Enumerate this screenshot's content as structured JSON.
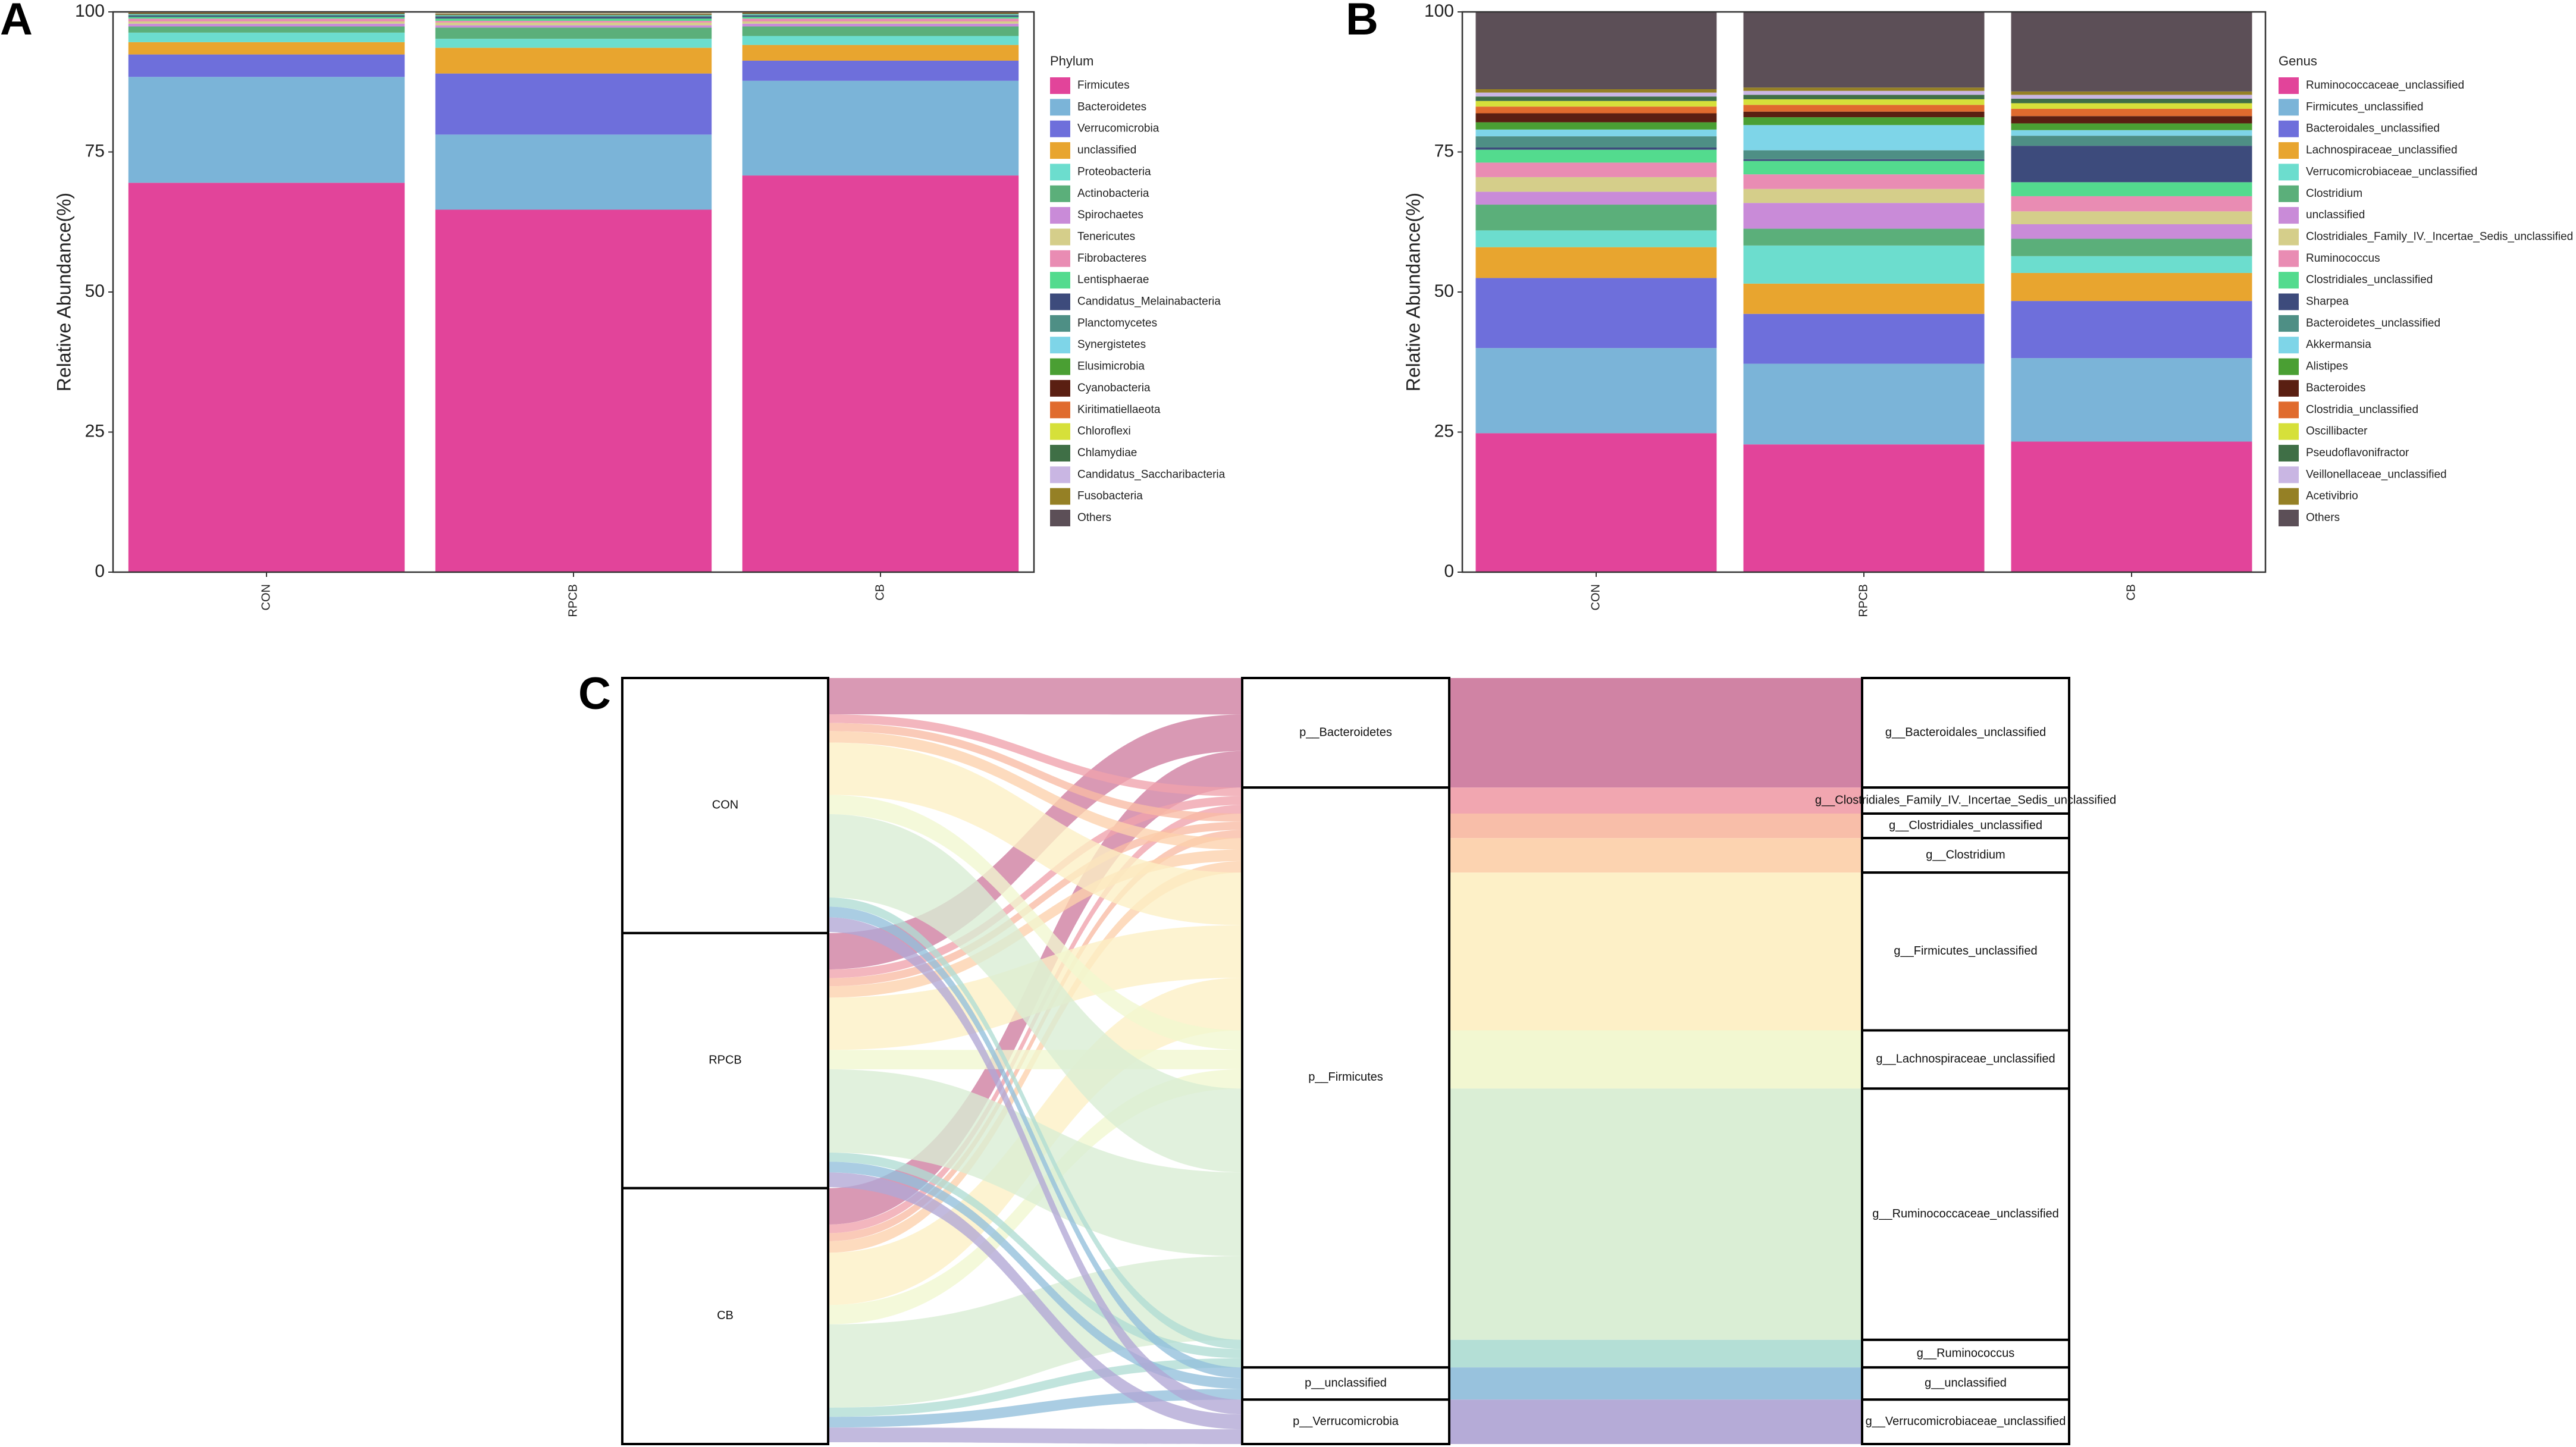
{
  "panel_labels": {
    "a": "A",
    "b": "B",
    "c": "C"
  },
  "chart_data": [
    {
      "id": "A",
      "type": "bar",
      "stacked": true,
      "title": "",
      "xlabel": "",
      "ylabel": "Relative Abundance(%)",
      "ylim": [
        0,
        100
      ],
      "yticks": [
        "0",
        "25",
        "50",
        "75",
        "100"
      ],
      "categories": [
        "CON",
        "RPCB",
        "CB"
      ],
      "legend_title": "Phylum",
      "legend_position": "right",
      "series": [
        {
          "name": "Firmicutes",
          "color": "#E2449A",
          "values": [
            69.5,
            64.7,
            70.8
          ]
        },
        {
          "name": "Bacteroidetes",
          "color": "#7BB4D8",
          "values": [
            18.9,
            13.4,
            16.9
          ]
        },
        {
          "name": "Verrucomicrobia",
          "color": "#6E6FDB",
          "values": [
            4.0,
            10.9,
            3.6
          ]
        },
        {
          "name": "unclassified",
          "color": "#E8A52F",
          "values": [
            2.2,
            4.6,
            2.8
          ]
        },
        {
          "name": "Proteobacteria",
          "color": "#6CDDCE",
          "values": [
            1.7,
            1.6,
            1.6
          ]
        },
        {
          "name": "Actinobacteria",
          "color": "#5BAF7A",
          "values": [
            1.1,
            2.0,
            1.7
          ]
        },
        {
          "name": "Spirochaetes",
          "color": "#C98BD8",
          "values": [
            0.5,
            0.4,
            0.5
          ]
        },
        {
          "name": "Tenericutes",
          "color": "#D5CE8A",
          "values": [
            0.4,
            0.5,
            0.4
          ]
        },
        {
          "name": "Fibrobacteres",
          "color": "#E98CB3",
          "values": [
            0.5,
            0.3,
            0.5
          ]
        },
        {
          "name": "Lentisphaerae",
          "color": "#53DB8E",
          "values": [
            0.3,
            0.4,
            0.3
          ]
        },
        {
          "name": "Candidatus_Melainabacteria",
          "color": "#3D4B7C",
          "values": [
            0.2,
            0.3,
            0.2
          ]
        },
        {
          "name": "Planctomycetes",
          "color": "#4E8F85",
          "values": [
            0.2,
            0.2,
            0.2
          ]
        },
        {
          "name": "Synergistetes",
          "color": "#7ED5E8",
          "values": [
            0.1,
            0.1,
            0.1
          ]
        },
        {
          "name": "Elusimicrobia",
          "color": "#4A9F33",
          "values": [
            0.1,
            0.1,
            0.1
          ]
        },
        {
          "name": "Cyanobacteria",
          "color": "#5A1F12",
          "values": [
            0.1,
            0.1,
            0.1
          ]
        },
        {
          "name": "Kiritimatiellaeota",
          "color": "#E06B2E",
          "values": [
            0.05,
            0.05,
            0.05
          ]
        },
        {
          "name": "Chloroflexi",
          "color": "#D6E03A",
          "values": [
            0.05,
            0.05,
            0.05
          ]
        },
        {
          "name": "Chlamydiae",
          "color": "#3F6F46",
          "values": [
            0.05,
            0.05,
            0.05
          ]
        },
        {
          "name": "Candidatus_Saccharibacteria",
          "color": "#C9B6E3",
          "values": [
            0.05,
            0.05,
            0.05
          ]
        },
        {
          "name": "Fusobacteria",
          "color": "#958025",
          "values": [
            0.05,
            0.05,
            0.05
          ]
        },
        {
          "name": "Others",
          "color": "#5C4F57",
          "values": [
            0.0,
            0.0,
            0.0
          ]
        }
      ]
    },
    {
      "id": "B",
      "type": "bar",
      "stacked": true,
      "title": "",
      "xlabel": "",
      "ylabel": "Relative Abundance(%)",
      "ylim": [
        0,
        100
      ],
      "yticks": [
        "0",
        "25",
        "50",
        "75",
        "100"
      ],
      "categories": [
        "CON",
        "RPCB",
        "CB"
      ],
      "legend_title": "Genus",
      "legend_position": "right",
      "series": [
        {
          "name": "Ruminococcaceae_unclassified",
          "color": "#E2449A",
          "values": [
            24.8,
            22.8,
            23.3
          ]
        },
        {
          "name": "Firmicutes_unclassified",
          "color": "#7BB4D8",
          "values": [
            15.2,
            14.4,
            14.9
          ]
        },
        {
          "name": "Bacteroidales_unclassified",
          "color": "#6E6FDB",
          "values": [
            12.5,
            8.9,
            10.2
          ]
        },
        {
          "name": "Lachnospiraceae_unclassified",
          "color": "#E8A52F",
          "values": [
            5.5,
            5.4,
            5.0
          ]
        },
        {
          "name": "Verrucomicrobiaceae_unclassified",
          "color": "#6CDDCE",
          "values": [
            3.0,
            6.8,
            3.0
          ]
        },
        {
          "name": "Clostridium",
          "color": "#5BAF7A",
          "values": [
            4.6,
            3.0,
            3.1
          ]
        },
        {
          "name": "unclassified",
          "color": "#C98BD8",
          "values": [
            2.3,
            4.6,
            2.6
          ]
        },
        {
          "name": "Clostridiales_Family_IV._Incertae_Sedis_unclassified",
          "color": "#D5CE8A",
          "values": [
            2.6,
            2.5,
            2.3
          ]
        },
        {
          "name": "Ruminococcus",
          "color": "#E98CB3",
          "values": [
            2.6,
            2.6,
            2.7
          ]
        },
        {
          "name": "Clostridiales_unclassified",
          "color": "#53DB8E",
          "values": [
            2.3,
            2.4,
            2.5
          ]
        },
        {
          "name": "Sharpea",
          "color": "#3D4B7C",
          "values": [
            0.4,
            0.3,
            6.5
          ]
        },
        {
          "name": "Bacteroidetes_unclassified",
          "color": "#4E8F85",
          "values": [
            2.0,
            1.6,
            1.8
          ]
        },
        {
          "name": "Akkermansia",
          "color": "#7ED5E8",
          "values": [
            1.2,
            4.5,
            1.0
          ]
        },
        {
          "name": "Alistipes",
          "color": "#4A9F33",
          "values": [
            1.3,
            1.4,
            1.2
          ]
        },
        {
          "name": "Bacteroides",
          "color": "#5A1F12",
          "values": [
            1.6,
            1.0,
            1.3
          ]
        },
        {
          "name": "Clostridia_unclassified",
          "color": "#E06B2E",
          "values": [
            1.2,
            1.2,
            1.3
          ]
        },
        {
          "name": "Oscillibacter",
          "color": "#D6E03A",
          "values": [
            1.0,
            1.0,
            1.0
          ]
        },
        {
          "name": "Pseudoflavonifractor",
          "color": "#3F6F46",
          "values": [
            0.8,
            0.8,
            0.8
          ]
        },
        {
          "name": "Veillonellaceae_unclassified",
          "color": "#C9B6E3",
          "values": [
            0.7,
            0.7,
            0.7
          ]
        },
        {
          "name": "Acetivibrio",
          "color": "#958025",
          "values": [
            0.6,
            0.6,
            0.6
          ]
        },
        {
          "name": "Others",
          "color": "#5C4F57",
          "values": [
            13.8,
            13.5,
            14.2
          ]
        }
      ]
    },
    {
      "id": "C",
      "type": "sankey",
      "title": "",
      "levels": [
        {
          "nodes": [
            {
              "name": "CON",
              "value": 33.3
            },
            {
              "name": "RPCB",
              "value": 33.3
            },
            {
              "name": "CB",
              "value": 33.4
            }
          ]
        },
        {
          "nodes": [
            {
              "name": "p__Bacteroidetes",
              "value": 14.3
            },
            {
              "name": "p__Firmicutes",
              "value": 75.7
            },
            {
              "name": "p__unclassified",
              "value": 4.2
            },
            {
              "name": "p__Verrucomicrobia",
              "value": 5.8
            }
          ]
        },
        {
          "nodes": [
            {
              "name": "g__Bacteroidales_unclassified",
              "value": 14.3,
              "color": "#CE7C9F"
            },
            {
              "name": "g__Clostridiales_Family_IV._Incertae_Sedis_unclassified",
              "value": 3.4,
              "color": "#F0A1AC"
            },
            {
              "name": "g__Clostridiales_unclassified",
              "value": 3.2,
              "color": "#F8BBA4"
            },
            {
              "name": "g__Clostridium",
              "value": 4.5,
              "color": "#FCD1AC"
            },
            {
              "name": "g__Firmicutes_unclassified",
              "value": 20.6,
              "color": "#FDEFC4"
            },
            {
              "name": "g__Lachnospiraceae_unclassified",
              "value": 7.6,
              "color": "#F1F7CF"
            },
            {
              "name": "g__Ruminococcaceae_unclassified",
              "value": 32.8,
              "color": "#D8EDD3"
            },
            {
              "name": "g__Ruminococcus",
              "value": 3.6,
              "color": "#B0DDD4"
            },
            {
              "name": "g__unclassified",
              "value": 4.2,
              "color": "#92BFDB"
            },
            {
              "name": "g__Verrucomicrobiaceae_unclassified",
              "value": 5.8,
              "color": "#B1A7D5"
            }
          ]
        }
      ]
    }
  ]
}
